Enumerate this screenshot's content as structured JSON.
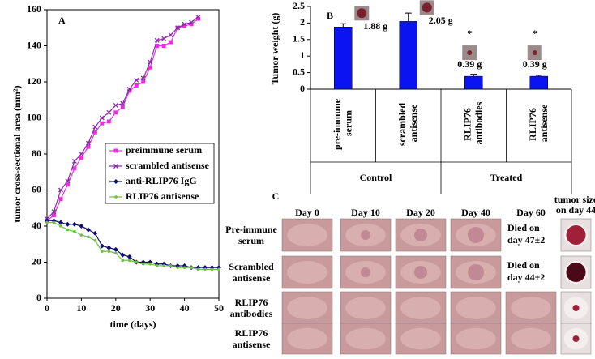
{
  "chart_data": [
    {
      "type": "line",
      "panel": "A",
      "xlabel": "time (days)",
      "ylabel": "tumor cross-sectional area (mm²)",
      "x": [
        0,
        2,
        4,
        6,
        8,
        10,
        12,
        14,
        16,
        18,
        20,
        22,
        24,
        26,
        28,
        30,
        32,
        34,
        36,
        38,
        40,
        42,
        44,
        46,
        48,
        50
      ],
      "xlim": [
        0,
        50
      ],
      "xticks": [
        0,
        10,
        20,
        30,
        40,
        50
      ],
      "ylim": [
        0,
        160
      ],
      "yticks": [
        0,
        20,
        40,
        60,
        80,
        100,
        120,
        140,
        160
      ],
      "series": [
        {
          "name": "preimmune serum",
          "color": "#e830e0",
          "marker": "square",
          "values": [
            43,
            46,
            55,
            63,
            72,
            78,
            84,
            92,
            97,
            98,
            103,
            106,
            115,
            118,
            120,
            128,
            140,
            140,
            142,
            150,
            151,
            152,
            155,
            null,
            null,
            null
          ]
        },
        {
          "name": "scrambled antisense",
          "color": "#8a2ab0",
          "marker": "cross",
          "values": [
            44,
            48,
            60,
            65,
            76,
            80,
            86,
            95,
            100,
            103,
            107,
            108,
            116,
            121,
            122,
            131,
            143,
            144,
            146,
            150,
            152,
            153,
            156,
            null,
            null,
            null
          ]
        },
        {
          "name": "anti-RLIP76 IgG",
          "color": "#101070",
          "marker": "diamond",
          "values": [
            43,
            43,
            42,
            41,
            41,
            40,
            38,
            36,
            29,
            28,
            27,
            24,
            23,
            20,
            20,
            20,
            19,
            19,
            18,
            18,
            18,
            17,
            17,
            17,
            17,
            17
          ]
        },
        {
          "name": "RLIP76 antisense",
          "color": "#70c040",
          "marker": "dot",
          "values": [
            42,
            42,
            40,
            38,
            37,
            35,
            34,
            32,
            26,
            26,
            25,
            21,
            21,
            20,
            19,
            19,
            18,
            18,
            18,
            17,
            17,
            17,
            16,
            16,
            16,
            16
          ]
        }
      ]
    },
    {
      "type": "bar",
      "panel": "B",
      "ylabel": "Tumor weight (g)",
      "categories": [
        [
          "pre-immune",
          "serum"
        ],
        [
          "scrambled",
          "antisense"
        ],
        [
          "RLIP76",
          "antibodies"
        ],
        [
          "RLIP76",
          "antisense"
        ]
      ],
      "values": [
        1.88,
        2.05,
        0.39,
        0.39
      ],
      "errors": [
        0.1,
        0.25,
        0.06,
        0.03
      ],
      "value_labels": [
        "1.88 g",
        "2.05 g",
        "0.39 g",
        "0.39 g"
      ],
      "color": "#0a14f0",
      "ylim": [
        0,
        2.5
      ],
      "yticks": [
        0,
        0.5,
        1,
        1.5,
        2,
        2.5
      ],
      "groups": [
        "Control",
        "Treated"
      ],
      "annotations": [
        null,
        null,
        "*",
        "*"
      ]
    }
  ],
  "panel_c": {
    "label": "C",
    "columns": [
      [
        "Day 0"
      ],
      [
        "Day 10"
      ],
      [
        "Day 20"
      ],
      [
        "Day 40"
      ],
      [
        "Day 60"
      ],
      [
        "tumor size",
        "on day 44"
      ]
    ],
    "rows": [
      [
        "Pre-immune",
        "serum"
      ],
      [
        "Scrambled",
        "antisense"
      ],
      [
        "RLIP76",
        "antibodies"
      ],
      [
        "RLIP76",
        "antisense"
      ]
    ],
    "day60_notes": [
      [
        "Died on",
        "day 47±2"
      ],
      [
        "Died on",
        "day 44±2"
      ],
      null,
      null
    ]
  }
}
